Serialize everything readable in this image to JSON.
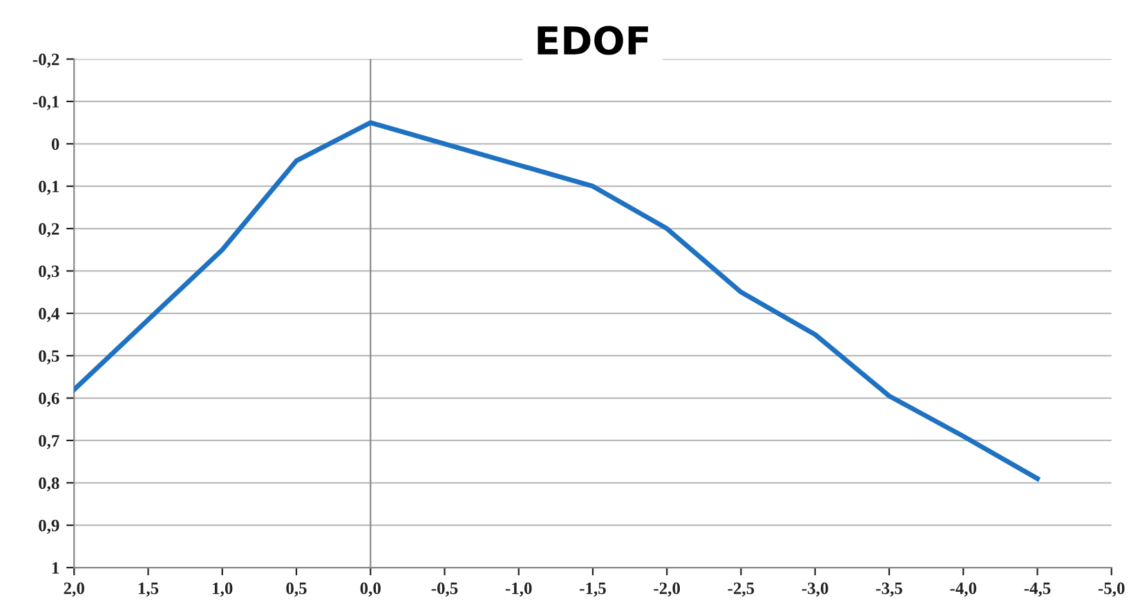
{
  "chart_data": {
    "type": "line",
    "title": "EDOF",
    "x": [
      2.0,
      1.5,
      1.0,
      0.5,
      0.0,
      -0.5,
      -1.0,
      -1.5,
      -2.0,
      -2.5,
      -3.0,
      -3.5,
      -4.0,
      -4.5
    ],
    "series": [
      {
        "color": "#1f72c2",
        "values": [
          0.58,
          0.415,
          0.25,
          0.04,
          -0.05,
          0.0,
          0.05,
          0.1,
          0.2,
          0.35,
          0.45,
          0.595,
          0.69,
          0.79
        ]
      }
    ],
    "xlim": [
      2.0,
      -5.0
    ],
    "xticks": [
      {
        "value": 2.0,
        "label": "2,0"
      },
      {
        "value": 1.5,
        "label": "1,5"
      },
      {
        "value": 1.0,
        "label": "1,0"
      },
      {
        "value": 0.5,
        "label": "0,5"
      },
      {
        "value": 0.0,
        "label": "0,0"
      },
      {
        "value": -0.5,
        "label": "-0,5"
      },
      {
        "value": -1.0,
        "label": "-1,0"
      },
      {
        "value": -1.5,
        "label": "-1,5"
      },
      {
        "value": -2.0,
        "label": "-2,0"
      },
      {
        "value": -2.5,
        "label": "-2,5"
      },
      {
        "value": -3.0,
        "label": "-3,0"
      },
      {
        "value": -3.5,
        "label": "-3,5"
      },
      {
        "value": -4.0,
        "label": "-4,0"
      },
      {
        "value": -4.5,
        "label": "-4,5"
      },
      {
        "value": -5.0,
        "label": "-5,0"
      }
    ],
    "ylim": [
      1,
      -0.2
    ],
    "yticks": [
      {
        "value": -0.2,
        "label": "-0,2"
      },
      {
        "value": -0.1,
        "label": "-0,1"
      },
      0,
      {
        "value": 0.1,
        "label": "0,1"
      },
      {
        "value": 0.2,
        "label": "0,2"
      },
      {
        "value": 0.3,
        "label": "0,3"
      },
      {
        "value": 0.4,
        "label": "0,4"
      },
      {
        "value": 0.5,
        "label": "0,5"
      },
      {
        "value": 0.6,
        "label": "0,6"
      },
      {
        "value": 0.7,
        "label": "0,7"
      },
      {
        "value": 0.8,
        "label": "0,8"
      },
      {
        "value": 0.9,
        "label": "0,9"
      },
      1
    ],
    "ref_lines": [
      {
        "axis": "x",
        "value": 0,
        "color": "#888888"
      }
    ],
    "grid": "y",
    "marker": "none",
    "line_style": "solid",
    "legend": false
  }
}
